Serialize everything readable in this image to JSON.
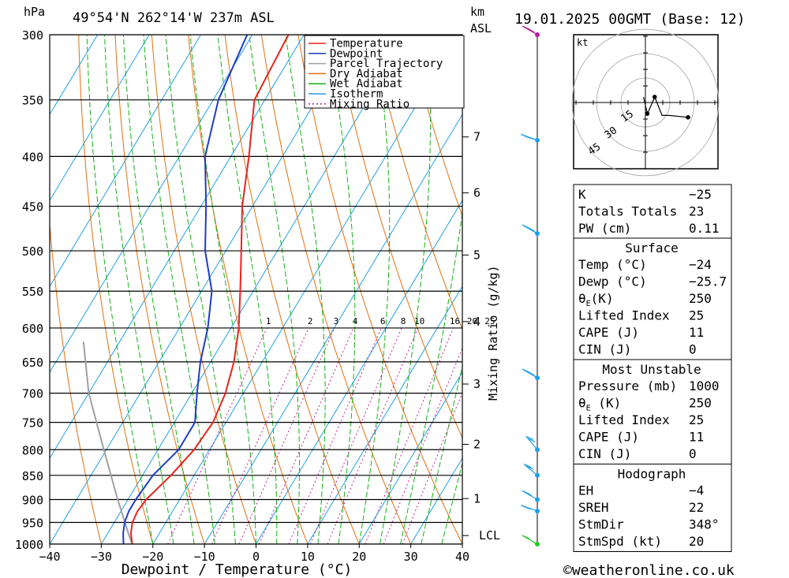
{
  "header": {
    "p_unit": "hPa",
    "location": "49°54'N  262°14'W  237m  ASL",
    "km_unit": "km",
    "asl": "ASL",
    "datetime": "19.01.2025  00GMT  (Base: 12)"
  },
  "footer": {
    "xlabel": "Dewpoint / Temperature (°C)",
    "copyright": "©weatheronline.co.uk"
  },
  "colors": {
    "temperature": "#e8231e",
    "dewpoint": "#1e3cc8",
    "parcel": "#a0a0a0",
    "dry_adiabat": "#e07010",
    "wet_adiabat": "#18b018",
    "isotherm": "#1ea0e6",
    "mixing_ratio": "#c81e96"
  },
  "legend": [
    {
      "label": "Temperature",
      "color": "#e8231e",
      "style": "solid"
    },
    {
      "label": "Dewpoint",
      "color": "#1e3cc8",
      "style": "solid"
    },
    {
      "label": "Parcel Trajectory",
      "color": "#a0a0a0",
      "style": "solid"
    },
    {
      "label": "Dry Adiabat",
      "color": "#e07010",
      "style": "solid"
    },
    {
      "label": "Wet Adiabat",
      "color": "#18b018",
      "style": "solid"
    },
    {
      "label": "Isotherm",
      "color": "#1ea0e6",
      "style": "solid"
    },
    {
      "label": "Mixing Ratio",
      "color": "#c81e96",
      "style": "dotted"
    }
  ],
  "chart_data": {
    "type": "skew-t",
    "xlabel": "Dewpoint / Temperature (°C)",
    "ylabel": "hPa",
    "mixing_ratio_axis_label": "Mixing Ratio (g/kg)",
    "xlim": [
      -40,
      40
    ],
    "ylim": [
      1000,
      300
    ],
    "pressure_ticks": [
      300,
      350,
      400,
      450,
      500,
      550,
      600,
      650,
      700,
      750,
      800,
      850,
      900,
      950,
      1000
    ],
    "temperature_ticks": [
      -40,
      -30,
      -20,
      -10,
      0,
      10,
      20,
      30,
      40
    ],
    "height_ticks_km": [
      {
        "label": "7",
        "p": 382
      },
      {
        "label": "6",
        "p": 436
      },
      {
        "label": "5",
        "p": 505
      },
      {
        "label": "4",
        "p": 591
      },
      {
        "label": "3",
        "p": 685
      },
      {
        "label": "2",
        "p": 790
      },
      {
        "label": "1",
        "p": 898
      },
      {
        "label": "LCL",
        "p": 980
      }
    ],
    "mixing_ratio_labels": [
      "1",
      "2",
      "3",
      "4",
      "6",
      "8",
      "10",
      "16",
      "20",
      "25"
    ],
    "temperature_profile": [
      {
        "p": 1000,
        "t": -24
      },
      {
        "p": 975,
        "t": -25.5
      },
      {
        "p": 950,
        "t": -26.5
      },
      {
        "p": 925,
        "t": -26.8
      },
      {
        "p": 900,
        "t": -26.5
      },
      {
        "p": 850,
        "t": -24.5
      },
      {
        "p": 800,
        "t": -23
      },
      {
        "p": 750,
        "t": -22.5
      },
      {
        "p": 700,
        "t": -23.5
      },
      {
        "p": 650,
        "t": -25.5
      },
      {
        "p": 600,
        "t": -28.5
      },
      {
        "p": 550,
        "t": -32.5
      },
      {
        "p": 500,
        "t": -37
      },
      {
        "p": 450,
        "t": -42
      },
      {
        "p": 400,
        "t": -46.5
      },
      {
        "p": 350,
        "t": -52
      },
      {
        "p": 300,
        "t": -53
      }
    ],
    "dewpoint_profile": [
      {
        "p": 1000,
        "t": -25.7
      },
      {
        "p": 975,
        "t": -27
      },
      {
        "p": 950,
        "t": -28
      },
      {
        "p": 925,
        "t": -28.5
      },
      {
        "p": 900,
        "t": -28.5
      },
      {
        "p": 850,
        "t": -28
      },
      {
        "p": 800,
        "t": -26
      },
      {
        "p": 750,
        "t": -26
      },
      {
        "p": 700,
        "t": -29
      },
      {
        "p": 650,
        "t": -32
      },
      {
        "p": 600,
        "t": -34.5
      },
      {
        "p": 550,
        "t": -38
      },
      {
        "p": 500,
        "t": -44
      },
      {
        "p": 450,
        "t": -49
      },
      {
        "p": 400,
        "t": -55
      },
      {
        "p": 350,
        "t": -59
      },
      {
        "p": 300,
        "t": -61
      }
    ],
    "parcel_profile": [
      {
        "p": 1000,
        "t": -24
      },
      {
        "p": 980,
        "t": -25.6
      },
      {
        "p": 900,
        "t": -32
      },
      {
        "p": 800,
        "t": -40.5
      },
      {
        "p": 700,
        "t": -50
      },
      {
        "p": 620,
        "t": -57
      }
    ],
    "wind_profile": [
      {
        "p": 1000,
        "dir": 300,
        "kt": 10
      },
      {
        "p": 925,
        "dir": 290,
        "kt": 15
      },
      {
        "p": 900,
        "dir": 300,
        "kt": 15
      },
      {
        "p": 850,
        "dir": 310,
        "kt": 20
      },
      {
        "p": 800,
        "dir": 320,
        "kt": 20
      },
      {
        "p": 675,
        "dir": 300,
        "kt": 25
      },
      {
        "p": 480,
        "dir": 300,
        "kt": 25
      },
      {
        "p": 385,
        "dir": 290,
        "kt": 25
      },
      {
        "p": 300,
        "dir": 300,
        "kt": 30
      }
    ],
    "hodograph": {
      "unit_label": "kt",
      "ring_labels": [
        "15",
        "30",
        "45"
      ],
      "points": [
        {
          "u": -1,
          "v": 3
        },
        {
          "u": 1,
          "v": -6
        },
        {
          "u": 2,
          "v": -4
        },
        {
          "u": 5,
          "v": 3
        },
        {
          "u": 9,
          "v": -7
        },
        {
          "u": 13,
          "v": -7
        },
        {
          "u": 23,
          "v": -8
        }
      ]
    }
  },
  "indices": {
    "top": [
      {
        "label": "K",
        "value": "-25"
      },
      {
        "label": "Totals Totals",
        "value": "23"
      },
      {
        "label": "PW (cm)",
        "value": "0.11"
      }
    ],
    "surface": {
      "title": "Surface",
      "rows": [
        {
          "label": "Temp (°C)",
          "value": "-24"
        },
        {
          "label": "Dewp (°C)",
          "value": "-25.7"
        },
        {
          "label": "θE(K)",
          "value": "250"
        },
        {
          "label": "Lifted Index",
          "value": "25"
        },
        {
          "label": "CAPE (J)",
          "value": "11"
        },
        {
          "label": "CIN (J)",
          "value": "0"
        }
      ]
    },
    "most_unstable": {
      "title": "Most Unstable",
      "rows": [
        {
          "label": "Pressure (mb)",
          "value": "1000"
        },
        {
          "label": "θE (K)",
          "value": "250"
        },
        {
          "label": "Lifted Index",
          "value": "25"
        },
        {
          "label": "CAPE (J)",
          "value": "11"
        },
        {
          "label": "CIN (J)",
          "value": "0"
        }
      ]
    },
    "hodograph": {
      "title": "Hodograph",
      "rows": [
        {
          "label": "EH",
          "value": "-4"
        },
        {
          "label": "SREH",
          "value": "22"
        },
        {
          "label": "StmDir",
          "value": "348°"
        },
        {
          "label": "StmSpd (kt)",
          "value": "20"
        }
      ]
    }
  }
}
